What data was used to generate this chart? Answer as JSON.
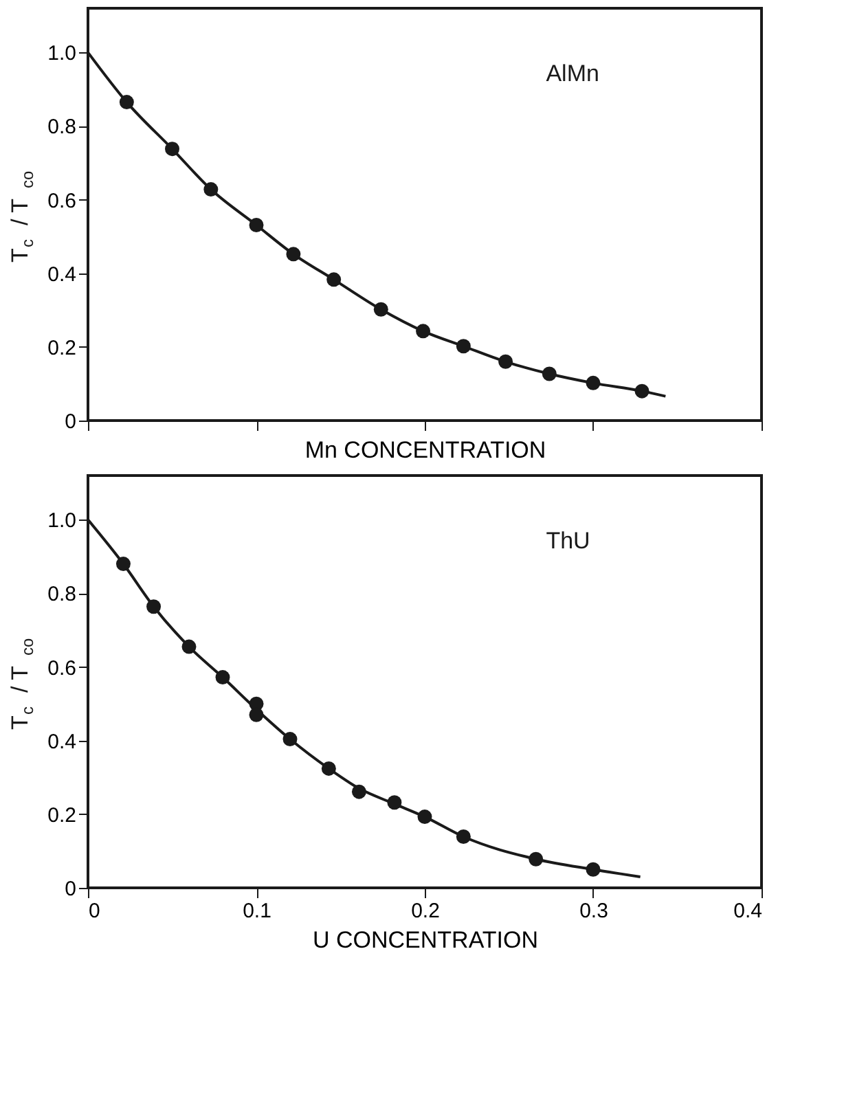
{
  "chart_data": [
    {
      "type": "scatter",
      "xlabel": "Mn CONCENTRATION",
      "ylabel": "T$_{c}$ / T$_{co}$",
      "annotations": [
        "AlMn"
      ],
      "tick_labels": "y",
      "grid": false,
      "xlim": [
        0,
        0.4
      ],
      "xticks": [
        0,
        0.1,
        0.2,
        0.3,
        0.4
      ],
      "ylim": [
        0,
        1.12
      ],
      "yticks": [
        0,
        0.2,
        0.4,
        0.6,
        0.8,
        {
          "value": 1.0,
          "label": "1.0"
        }
      ],
      "series": [
        {
          "type": "line",
          "color": "#1a1a1a",
          "line_style": "solid",
          "marker": "none",
          "x": [
            0,
            0.023,
            0.05,
            0.073,
            0.1,
            0.122,
            0.146,
            0.174,
            0.199,
            0.223,
            0.248,
            0.274,
            0.3,
            0.329,
            0.343
          ],
          "values": [
            1.0,
            0.865,
            0.738,
            0.628,
            0.531,
            0.452,
            0.383,
            0.302,
            0.243,
            0.202,
            0.16,
            0.127,
            0.102,
            0.08,
            0.066
          ]
        },
        {
          "type": "scatter",
          "color": "#1a1a1a",
          "marker": "circle",
          "x": [
            0.023,
            0.05,
            0.073,
            0.1,
            0.122,
            0.146,
            0.174,
            0.199,
            0.223,
            0.248,
            0.274,
            0.3,
            0.329
          ],
          "values": [
            0.865,
            0.738,
            0.628,
            0.531,
            0.452,
            0.383,
            0.302,
            0.243,
            0.202,
            0.16,
            0.127,
            0.102,
            0.08
          ]
        }
      ]
    },
    {
      "type": "scatter",
      "xlabel": "U CONCENTRATION",
      "ylabel": "T$_{c}$ / T$_{co}$",
      "annotations": [
        "ThU"
      ],
      "grid": false,
      "xlim": [
        0,
        0.4
      ],
      "xticks": [
        0,
        0.1,
        0.2,
        0.3,
        0.4
      ],
      "ylim": [
        0,
        1.12
      ],
      "yticks": [
        0,
        0.2,
        0.4,
        0.6,
        0.8,
        {
          "value": 1.0,
          "label": "1.0"
        }
      ],
      "series": [
        {
          "type": "line",
          "color": "#1a1a1a",
          "line_style": "solid",
          "marker": "none",
          "x": [
            0,
            0.021,
            0.039,
            0.06,
            0.08,
            0.1,
            0.12,
            0.143,
            0.161,
            0.182,
            0.2,
            0.223,
            0.266,
            0.3,
            0.328
          ],
          "values": [
            1.0,
            0.88,
            0.764,
            0.655,
            0.572,
            0.485,
            0.404,
            0.324,
            0.27,
            0.228,
            0.193,
            0.139,
            0.078,
            0.05,
            0.03
          ]
        },
        {
          "type": "scatter",
          "color": "#1a1a1a",
          "marker": "circle",
          "x": [
            0.021,
            0.039,
            0.06,
            0.08,
            0.1,
            0.1,
            0.12,
            0.143,
            0.161,
            0.182,
            0.2,
            0.223,
            0.266,
            0.3
          ],
          "values": [
            0.88,
            0.764,
            0.655,
            0.572,
            0.5,
            0.47,
            0.404,
            0.324,
            0.261,
            0.232,
            0.193,
            0.139,
            0.078,
            0.05
          ]
        }
      ]
    }
  ]
}
